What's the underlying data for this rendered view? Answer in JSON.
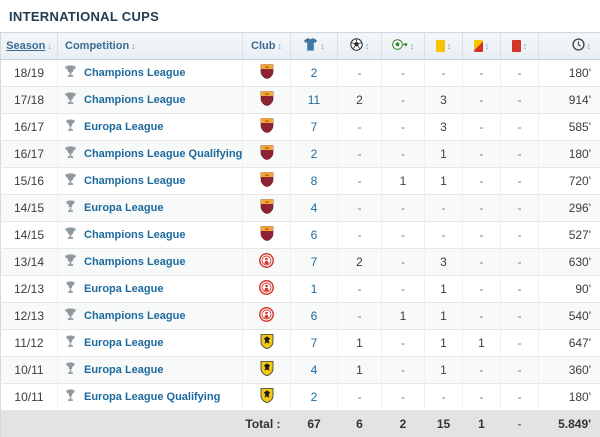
{
  "title": "INTERNATIONAL CUPS",
  "colors": {
    "link_blue": "#1c6a9e",
    "yellow_card": "#f6c500",
    "red_card": "#d2342a",
    "header_text": "#3c6b91"
  },
  "table": {
    "headers": {
      "season": {
        "label": "Season",
        "sort": "↓"
      },
      "competition": {
        "label": "Competition",
        "sort": "↕"
      },
      "club": {
        "label": "Club",
        "sort": "↕"
      },
      "appearances": {
        "icon": "jersey-icon",
        "sort": "↕"
      },
      "goals": {
        "icon": "soccer-ball-icon",
        "sort": "↕"
      },
      "assists": {
        "icon": "assist-ball-icon",
        "sort": "↕"
      },
      "yellow_cards": {
        "icon": "yellow-card-icon",
        "sort": "↕"
      },
      "yellow_red_cards": {
        "icon": "yellow-red-card-icon",
        "sort": "↕"
      },
      "red_cards": {
        "icon": "red-card-icon",
        "sort": "↕"
      },
      "minutes": {
        "icon": "clock-icon",
        "sort": "↕"
      }
    },
    "rows": [
      {
        "season": "18/19",
        "competition": "Champions League",
        "club": "roma",
        "apps": "2",
        "goals": "-",
        "assists": "-",
        "yellow": "-",
        "yellowred": "-",
        "red": "-",
        "minutes": "180'"
      },
      {
        "season": "17/18",
        "competition": "Champions League",
        "club": "roma",
        "apps": "11",
        "goals": "2",
        "assists": "-",
        "yellow": "3",
        "yellowred": "-",
        "red": "-",
        "minutes": "914'"
      },
      {
        "season": "16/17",
        "competition": "Europa League",
        "club": "roma",
        "apps": "7",
        "goals": "-",
        "assists": "-",
        "yellow": "3",
        "yellowred": "-",
        "red": "-",
        "minutes": "585'"
      },
      {
        "season": "16/17",
        "competition": "Champions League Qualifying",
        "club": "roma",
        "apps": "2",
        "goals": "-",
        "assists": "-",
        "yellow": "1",
        "yellowred": "-",
        "red": "-",
        "minutes": "180'"
      },
      {
        "season": "15/16",
        "competition": "Champions League",
        "club": "roma",
        "apps": "8",
        "goals": "-",
        "assists": "1",
        "yellow": "1",
        "yellowred": "-",
        "red": "-",
        "minutes": "720'"
      },
      {
        "season": "14/15",
        "competition": "Europa League",
        "club": "roma",
        "apps": "4",
        "goals": "-",
        "assists": "-",
        "yellow": "-",
        "yellowred": "-",
        "red": "-",
        "minutes": "296'"
      },
      {
        "season": "14/15",
        "competition": "Champions League",
        "club": "roma",
        "apps": "6",
        "goals": "-",
        "assists": "-",
        "yellow": "-",
        "yellowred": "-",
        "red": "-",
        "minutes": "527'"
      },
      {
        "season": "13/14",
        "competition": "Champions League",
        "club": "olympiacos",
        "apps": "7",
        "goals": "2",
        "assists": "-",
        "yellow": "3",
        "yellowred": "-",
        "red": "-",
        "minutes": "630'"
      },
      {
        "season": "12/13",
        "competition": "Europa League",
        "club": "olympiacos",
        "apps": "1",
        "goals": "-",
        "assists": "-",
        "yellow": "1",
        "yellowred": "-",
        "red": "-",
        "minutes": "90'"
      },
      {
        "season": "12/13",
        "competition": "Champions League",
        "club": "olympiacos",
        "apps": "6",
        "goals": "-",
        "assists": "1",
        "yellow": "1",
        "yellowred": "-",
        "red": "-",
        "minutes": "540'"
      },
      {
        "season": "11/12",
        "competition": "Europa League",
        "club": "aek",
        "apps": "7",
        "goals": "1",
        "assists": "-",
        "yellow": "1",
        "yellowred": "1",
        "red": "-",
        "minutes": "647'"
      },
      {
        "season": "10/11",
        "competition": "Europa League",
        "club": "aek",
        "apps": "4",
        "goals": "1",
        "assists": "-",
        "yellow": "1",
        "yellowred": "-",
        "red": "-",
        "minutes": "360'"
      },
      {
        "season": "10/11",
        "competition": "Europa League Qualifying",
        "club": "aek",
        "apps": "2",
        "goals": "-",
        "assists": "-",
        "yellow": "-",
        "yellowred": "-",
        "red": "-",
        "minutes": "180'"
      }
    ],
    "total": {
      "label": "Total :",
      "apps": "67",
      "goals": "6",
      "assists": "2",
      "yellow": "15",
      "yellowred": "1",
      "red": "-",
      "minutes": "5.849'"
    }
  }
}
